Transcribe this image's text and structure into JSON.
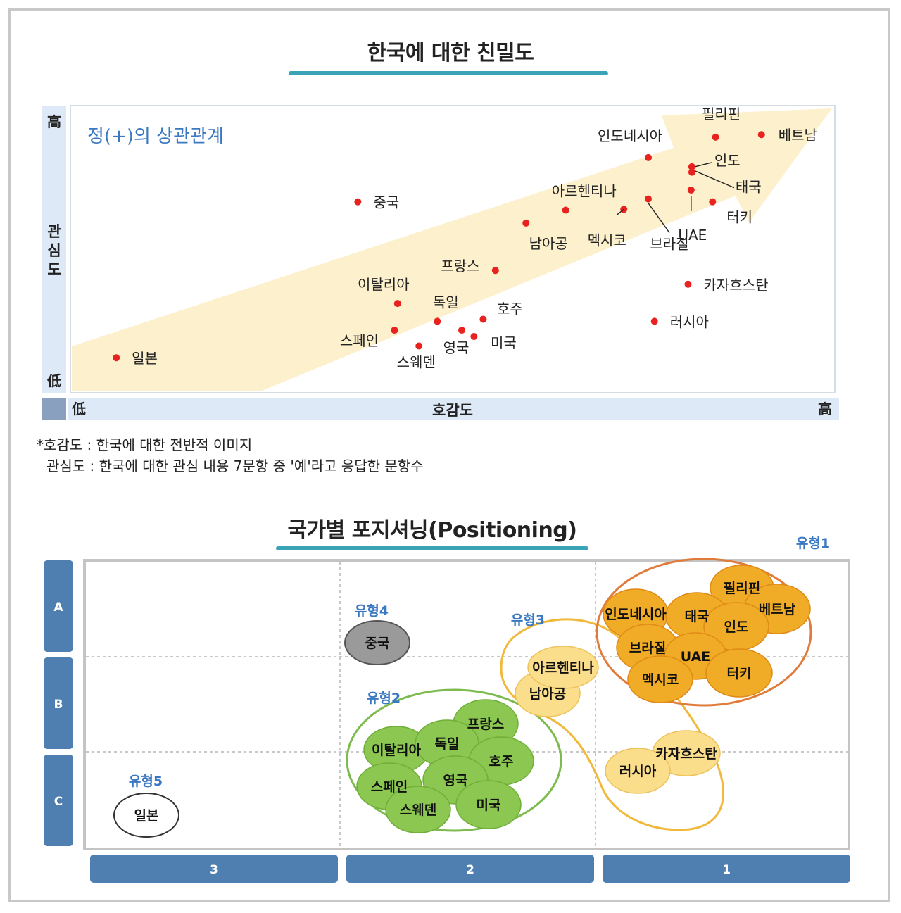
{
  "section1": {
    "title": "한국에 대한 친밀도",
    "corr_label": "정(+)의 상관관계"
  },
  "notes": {
    "line1": "*호감도 : 한국에 대한 전반적 이미지",
    "line2": "관심도 : 한국에 대한 관심 내용 7문항 중 '예'라고 응답한 문항수"
  },
  "section2": {
    "title": "국가별 포지셔닝(Positioning)"
  },
  "colors": {
    "accent_bar": "#3aa3b6",
    "dot": "#e8231f",
    "arrow": "#fdf0cc",
    "axis_band": "#dde9f7",
    "type1_fill": "#f0ab27",
    "type1_ring": "#e07b3a",
    "type2_fill": "#8cc751",
    "type2_ring": "#7dbb4f",
    "type3_fill": "#fbde8c",
    "type3_ring": "#f1b93c",
    "type4_fill": "#9a9a9a",
    "row_col_box": "#4f7fb0",
    "type_label": "#3a78c2"
  },
  "chart_data": [
    {
      "type": "scatter",
      "title": "한국에 대한 친밀도",
      "xlabel": "호감도",
      "ylabel": "관심도",
      "x_low_label": "低",
      "x_high_label": "高",
      "y_low_label": "低",
      "y_high_label": "高",
      "annotation": "정(+)의 상관관계",
      "xlim": [
        0,
        100
      ],
      "ylim": [
        0,
        100
      ],
      "grid": false,
      "points": [
        {
          "label": "필리핀",
          "x": 84.4,
          "y": 89.0
        },
        {
          "label": "베트남",
          "x": 90.4,
          "y": 89.9
        },
        {
          "label": "인도네시아",
          "x": 75.6,
          "y": 81.9
        },
        {
          "label": "인도",
          "x": 81.3,
          "y": 78.7
        },
        {
          "label": "태국",
          "x": 81.3,
          "y": 76.8
        },
        {
          "label": "UAE",
          "x": 81.2,
          "y": 70.6
        },
        {
          "label": "터키",
          "x": 84.0,
          "y": 66.5
        },
        {
          "label": "브라질",
          "x": 75.6,
          "y": 67.5
        },
        {
          "label": "멕시코",
          "x": 72.4,
          "y": 63.9
        },
        {
          "label": "아르헨티나",
          "x": 64.8,
          "y": 63.6
        },
        {
          "label": "남아공",
          "x": 59.6,
          "y": 59.1
        },
        {
          "label": "중국",
          "x": 37.6,
          "y": 66.5
        },
        {
          "label": "프랑스",
          "x": 55.6,
          "y": 42.6
        },
        {
          "label": "카자흐스탄",
          "x": 80.8,
          "y": 37.8
        },
        {
          "label": "러시아",
          "x": 76.4,
          "y": 24.9
        },
        {
          "label": "이탈리아",
          "x": 42.8,
          "y": 31.1
        },
        {
          "label": "독일",
          "x": 48.0,
          "y": 24.9
        },
        {
          "label": "호주",
          "x": 54.0,
          "y": 25.6
        },
        {
          "label": "스페인",
          "x": 42.4,
          "y": 21.8
        },
        {
          "label": "미국",
          "x": 52.8,
          "y": 19.6
        },
        {
          "label": "영국",
          "x": 51.2,
          "y": 21.8
        },
        {
          "label": "스웨덴",
          "x": 45.6,
          "y": 16.3
        },
        {
          "label": "일본",
          "x": 6.0,
          "y": 12.2
        }
      ]
    },
    {
      "type": "table",
      "title": "국가별 포지셔닝(Positioning)",
      "rows": [
        "A",
        "B",
        "C"
      ],
      "columns": [
        "3",
        "2",
        "1"
      ],
      "groups": [
        {
          "name": "유형1",
          "members": [
            "필리핀",
            "베트남",
            "인도네시아",
            "태국",
            "인도",
            "브라질",
            "UAE",
            "멕시코",
            "터키"
          ]
        },
        {
          "name": "유형2",
          "members": [
            "프랑스",
            "독일",
            "이탈리아",
            "호주",
            "영국",
            "스페인",
            "스웨덴",
            "미국"
          ]
        },
        {
          "name": "유형3",
          "members": [
            "아르헨티나",
            "남아공",
            "카자흐스탄",
            "러시아"
          ]
        },
        {
          "name": "유형4",
          "members": [
            "중국"
          ]
        },
        {
          "name": "유형5",
          "members": [
            "일본"
          ]
        }
      ]
    }
  ]
}
